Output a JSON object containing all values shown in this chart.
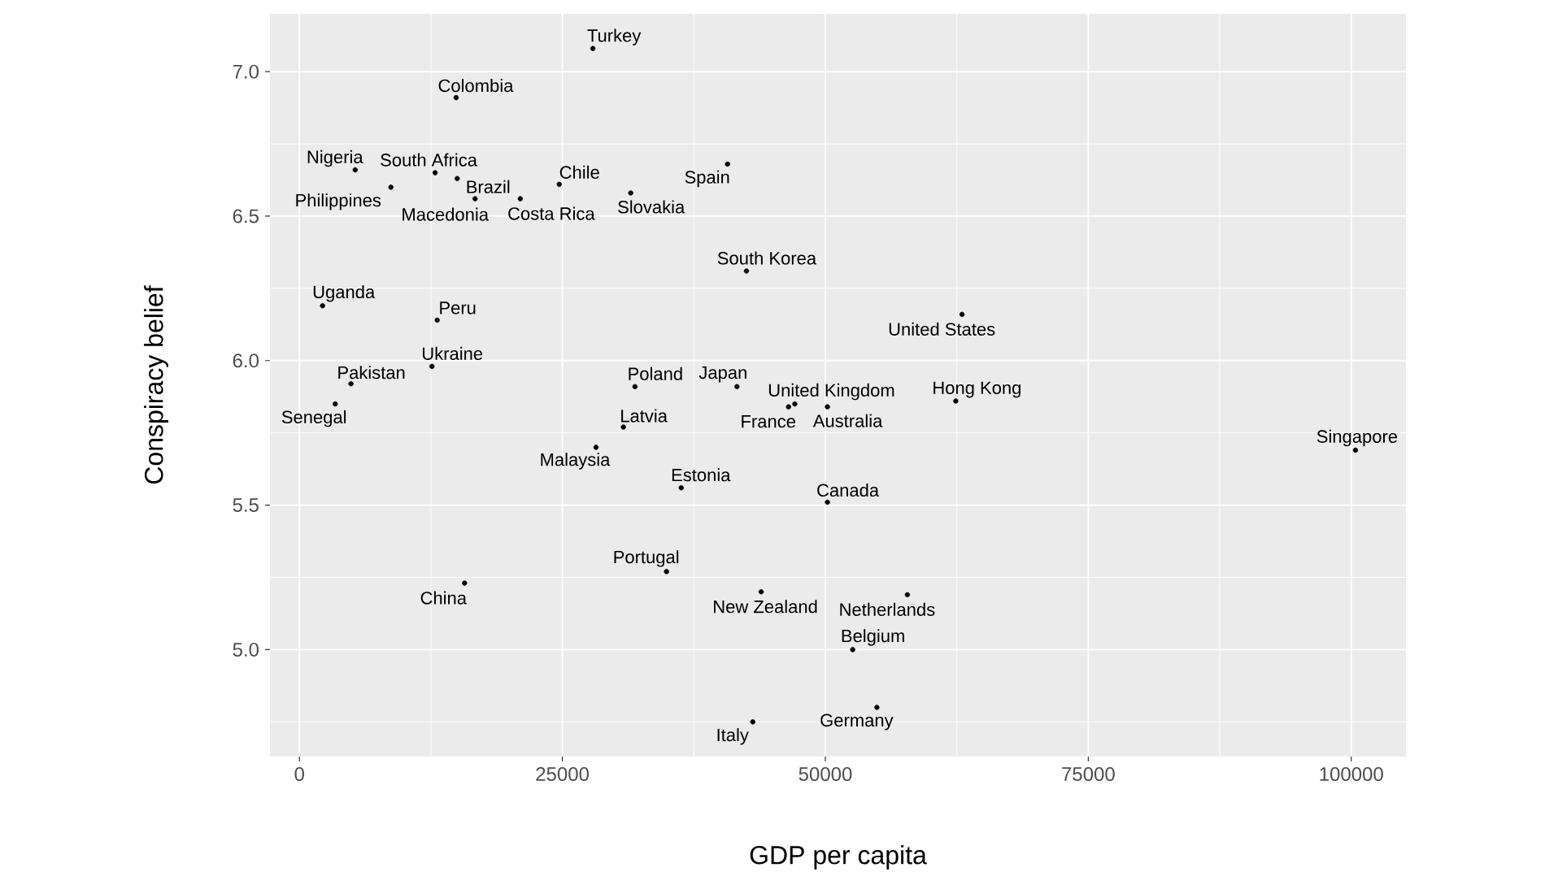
{
  "chart_data": {
    "type": "scatter",
    "xlabel": "GDP per capita",
    "ylabel": "Conspiracy belief",
    "x": [
      27900,
      14900,
      5300,
      12900,
      15000,
      16700,
      8700,
      21000,
      24700,
      31500,
      40700,
      42500,
      63000,
      2200,
      13100,
      12600,
      4900,
      31900,
      41600,
      47100,
      46500,
      50200,
      62400,
      3400,
      30800,
      28200,
      36300,
      34900,
      15700,
      50200,
      43900,
      57800,
      52600,
      54900,
      43100,
      100400
    ],
    "values": [
      7.08,
      6.91,
      6.66,
      6.65,
      6.63,
      6.56,
      6.6,
      6.56,
      6.61,
      6.58,
      6.68,
      6.31,
      6.16,
      6.19,
      6.14,
      5.98,
      5.92,
      5.91,
      5.91,
      5.85,
      5.84,
      5.84,
      5.86,
      5.85,
      5.77,
      5.7,
      5.56,
      5.27,
      5.23,
      5.51,
      5.2,
      5.19,
      5.0,
      4.8,
      4.75,
      5.69
    ],
    "color": "#000000",
    "marker": "circle",
    "grid": true,
    "xlim": [
      -2800,
      105200
    ],
    "ylim": [
      4.63,
      7.2
    ],
    "xticks": [
      0,
      25000,
      50000,
      75000,
      100000
    ],
    "yticks": [
      {
        "value": 5,
        "label": "5.0"
      },
      {
        "value": 5.5,
        "label": "5.5"
      },
      {
        "value": 6,
        "label": "6.0"
      },
      {
        "value": 6.5,
        "label": "6.5"
      },
      {
        "value": 7,
        "label": "7.0"
      }
    ],
    "annotations": [
      {
        "text": "Turkey",
        "x": 27900,
        "y": 7.08
      },
      {
        "text": "Colombia",
        "x": 14900,
        "y": 6.91
      },
      {
        "text": "Nigeria",
        "x": 5300,
        "y": 6.66
      },
      {
        "text": "South Africa",
        "x": 12900,
        "y": 6.65
      },
      {
        "text": "Brazil",
        "x": 15000,
        "y": 6.63
      },
      {
        "text": "Macedonia",
        "x": 16700,
        "y": 6.56
      },
      {
        "text": "Philippines",
        "x": 8700,
        "y": 6.6
      },
      {
        "text": "Costa Rica",
        "x": 21000,
        "y": 6.56
      },
      {
        "text": "Chile",
        "x": 24700,
        "y": 6.61
      },
      {
        "text": "Slovakia",
        "x": 31500,
        "y": 6.58
      },
      {
        "text": "Spain",
        "x": 40700,
        "y": 6.68
      },
      {
        "text": "South Korea",
        "x": 42500,
        "y": 6.31
      },
      {
        "text": "United States",
        "x": 63000,
        "y": 6.16
      },
      {
        "text": "Uganda",
        "x": 2200,
        "y": 6.19
      },
      {
        "text": "Peru",
        "x": 13100,
        "y": 6.14
      },
      {
        "text": "Ukraine",
        "x": 12600,
        "y": 5.98
      },
      {
        "text": "Pakistan",
        "x": 4900,
        "y": 5.92
      },
      {
        "text": "Poland",
        "x": 31900,
        "y": 5.91
      },
      {
        "text": "Japan",
        "x": 41600,
        "y": 5.91
      },
      {
        "text": "United Kingdom",
        "x": 47100,
        "y": 5.85
      },
      {
        "text": "France",
        "x": 46500,
        "y": 5.84
      },
      {
        "text": "Australia",
        "x": 50200,
        "y": 5.84
      },
      {
        "text": "Hong Kong",
        "x": 62400,
        "y": 5.86
      },
      {
        "text": "Senegal",
        "x": 3400,
        "y": 5.85
      },
      {
        "text": "Latvia",
        "x": 30800,
        "y": 5.77
      },
      {
        "text": "Malaysia",
        "x": 28200,
        "y": 5.7
      },
      {
        "text": "Estonia",
        "x": 36300,
        "y": 5.56
      },
      {
        "text": "Portugal",
        "x": 34900,
        "y": 5.27
      },
      {
        "text": "China",
        "x": 15700,
        "y": 5.23
      },
      {
        "text": "Canada",
        "x": 50200,
        "y": 5.51
      },
      {
        "text": "New Zealand",
        "x": 43900,
        "y": 5.2
      },
      {
        "text": "Netherlands",
        "x": 57800,
        "y": 5.19
      },
      {
        "text": "Belgium",
        "x": 52600,
        "y": 5.0
      },
      {
        "text": "Germany",
        "x": 54900,
        "y": 4.8
      },
      {
        "text": "Italy",
        "x": 43100,
        "y": 4.75
      },
      {
        "text": "Singapore",
        "x": 100400,
        "y": 5.69
      }
    ]
  }
}
